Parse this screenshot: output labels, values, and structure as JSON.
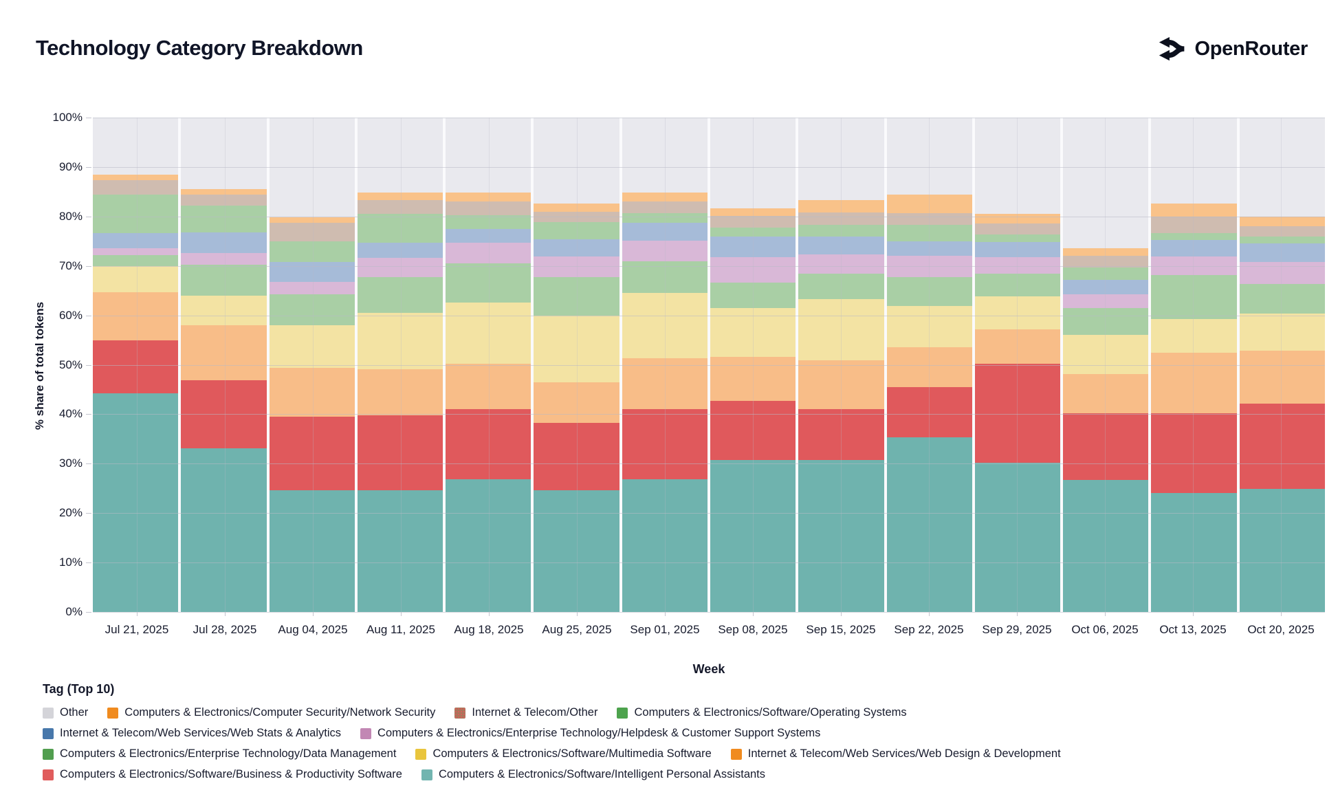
{
  "header": {
    "title": "Technology Category Breakdown",
    "brand": "OpenRouter"
  },
  "chart_data": {
    "type": "bar",
    "stacked": true,
    "title": "Technology Category Breakdown",
    "xlabel": "Week",
    "ylabel": "% share of total tokens",
    "ylim": [
      0,
      100
    ],
    "grid": true,
    "legend_position": "bottom",
    "y_ticks": [
      "0%",
      "10%",
      "20%",
      "30%",
      "40%",
      "50%",
      "60%",
      "70%",
      "80%",
      "90%",
      "100%"
    ],
    "categories": [
      "Jul 21, 2025",
      "Jul 28, 2025",
      "Aug 04, 2025",
      "Aug 11, 2025",
      "Aug 18, 2025",
      "Aug 25, 2025",
      "Sep 01, 2025",
      "Sep 08, 2025",
      "Sep 15, 2025",
      "Sep 22, 2025",
      "Sep 29, 2025",
      "Oct 06, 2025",
      "Oct 13, 2025",
      "Oct 20, 2025"
    ],
    "series": [
      {
        "key": "intelligent-personal-assistants",
        "name": "Computers & Electronics/Software/Intelligent Personal Assistants",
        "legend_color": "#72b5b0",
        "bar_color": "#6fb3ae",
        "values": [
          44.2,
          33.1,
          24.6,
          24.6,
          26.9,
          24.6,
          26.9,
          30.8,
          30.8,
          35.3,
          30.2,
          26.7,
          24.0,
          24.9
        ]
      },
      {
        "key": "business-productivity-software",
        "name": "Computers & Electronics/Software/Business & Productivity Software",
        "legend_color": "#e05c5c",
        "bar_color": "#e0595c",
        "values": [
          10.7,
          13.8,
          14.9,
          15.2,
          14.2,
          13.6,
          14.2,
          11.9,
          10.3,
          10.2,
          20.0,
          13.5,
          16.2,
          17.3
        ]
      },
      {
        "key": "web-design-development",
        "name": "Internet & Telecom/Web Services/Web Design & Development",
        "legend_color": "#f08b1f",
        "bar_color": "#f8bd88",
        "values": [
          9.8,
          11.1,
          9.9,
          9.3,
          9.1,
          8.2,
          10.2,
          8.9,
          9.8,
          8.1,
          7.0,
          7.9,
          12.3,
          10.6
        ]
      },
      {
        "key": "multimedia-software",
        "name": "Computers & Electronics/Software/Multimedia Software",
        "legend_color": "#e9c53d",
        "bar_color": "#f3e3a3",
        "values": [
          5.2,
          6.0,
          8.6,
          11.4,
          12.4,
          13.6,
          13.2,
          9.9,
          12.4,
          8.3,
          6.7,
          8.0,
          6.8,
          7.5
        ]
      },
      {
        "key": "data-management",
        "name": "Computers & Electronics/Enterprise Technology/Data Management",
        "legend_color": "#519e4f",
        "bar_color": "#a9cfa5",
        "values": [
          2.3,
          6.3,
          6.2,
          7.2,
          7.9,
          7.7,
          6.4,
          5.1,
          5.2,
          5.8,
          4.6,
          5.4,
          8.9,
          6.1
        ]
      },
      {
        "key": "helpdesk-customer-support",
        "name": "Computers & Electronics/Enterprise Technology/Helpdesk & Customer Support Systems",
        "legend_color": "#c287b4",
        "bar_color": "#d9b8d7",
        "values": [
          1.4,
          2.3,
          2.6,
          4.0,
          4.2,
          4.2,
          4.2,
          5.2,
          3.9,
          4.4,
          3.3,
          2.8,
          3.7,
          4.4
        ]
      },
      {
        "key": "web-stats-analytics",
        "name": "Internet & Telecom/Web Services/Web Stats & Analytics",
        "legend_color": "#4878ab",
        "bar_color": "#a6bbd8",
        "values": [
          3.0,
          4.2,
          4.0,
          3.0,
          2.8,
          3.5,
          3.6,
          4.2,
          3.6,
          2.9,
          3.1,
          2.9,
          3.4,
          3.7
        ]
      },
      {
        "key": "operating-systems",
        "name": "Computers & Electronics/Software/Operating Systems",
        "legend_color": "#4da34d",
        "bar_color": "#a9cfa5",
        "values": [
          7.9,
          5.4,
          4.2,
          5.8,
          2.7,
          3.4,
          2.0,
          1.7,
          2.3,
          3.3,
          1.5,
          2.5,
          1.4,
          1.4
        ]
      },
      {
        "key": "internet-telecom-other",
        "name": "Internet & Telecom/Other",
        "legend_color": "#a8765a",
        "bar_color": "#cfbcb0",
        "values": [
          2.8,
          2.3,
          3.7,
          2.8,
          2.9,
          2.2,
          2.3,
          2.4,
          2.5,
          2.4,
          2.2,
          2.4,
          3.3,
          2.1
        ]
      },
      {
        "key": "network-security",
        "name": "Computers & Electronics/Computer Security/Network Security",
        "legend_color": "#f08b1f",
        "bar_color": "#f9c289",
        "values": [
          1.2,
          1.1,
          1.2,
          1.5,
          1.7,
          1.6,
          1.8,
          1.6,
          2.5,
          3.8,
          1.9,
          1.5,
          2.6,
          2.0
        ]
      },
      {
        "key": "other",
        "name": "Other",
        "legend_color": "#d4d4d9",
        "bar_color": "#e9e9ee",
        "values": [
          11.5,
          14.4,
          20.1,
          15.2,
          15.2,
          17.4,
          15.2,
          18.3,
          16.7,
          15.5,
          19.5,
          26.4,
          17.4,
          20.0
        ]
      }
    ]
  },
  "legend": {
    "title": "Tag (Top 10)",
    "rows": [
      [
        10,
        9,
        8,
        7
      ],
      [
        6,
        5
      ],
      [
        4,
        3,
        2
      ],
      [
        1,
        0
      ]
    ]
  }
}
